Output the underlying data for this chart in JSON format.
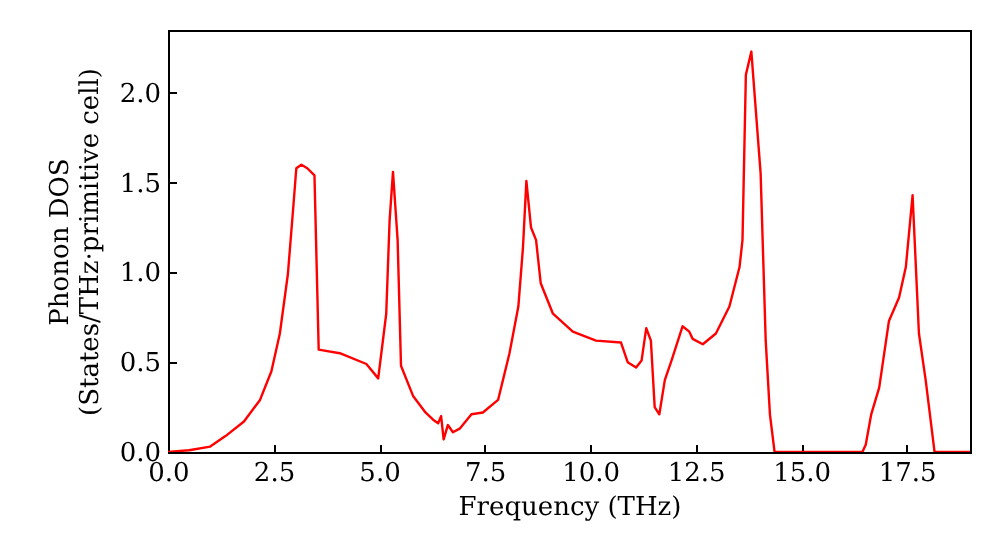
{
  "chart_data": {
    "type": "line",
    "xlabel": "Frequency (THz)",
    "ylabel": "Phonon DOS\n(States/THz·primitive cell)",
    "xlim": [
      0,
      19
    ],
    "ylim": [
      0,
      2.35
    ],
    "xticks": [
      {
        "value": 0,
        "label": "0.0"
      },
      {
        "value": 2.5,
        "label": "2.5"
      },
      {
        "value": 5,
        "label": "5.0"
      },
      {
        "value": 7.5,
        "label": "7.5"
      },
      {
        "value": 10,
        "label": "10.0"
      },
      {
        "value": 12.5,
        "label": "12.5"
      },
      {
        "value": 15,
        "label": "15.0"
      },
      {
        "value": 17.5,
        "label": "17.5"
      }
    ],
    "yticks": [
      {
        "value": 0,
        "label": "0.0"
      },
      {
        "value": 0.5,
        "label": "0.5"
      },
      {
        "value": 1,
        "label": "1.0"
      },
      {
        "value": 1.5,
        "label": "1.5"
      },
      {
        "value": 2,
        "label": "2.0"
      }
    ],
    "grid": false,
    "series": [
      {
        "color": "#ff0000",
        "x": [
          0,
          0.5,
          1.0,
          1.37,
          1.8,
          2.18,
          2.45,
          2.65,
          2.84,
          2.97,
          3.04,
          3.16,
          3.3,
          3.47,
          3.57,
          4.07,
          4.7,
          4.98,
          5.17,
          5.25,
          5.33,
          5.44,
          5.52,
          5.81,
          6.1,
          6.28,
          6.4,
          6.47,
          6.53,
          6.63,
          6.75,
          6.91,
          7.19,
          7.46,
          7.82,
          8.09,
          8.3,
          8.41,
          8.49,
          8.6,
          8.72,
          8.83,
          9.12,
          9.59,
          10.14,
          10.73,
          10.89,
          11.09,
          11.22,
          11.33,
          11.44,
          11.53,
          11.64,
          11.77,
          11.93,
          12.19,
          12.35,
          12.43,
          12.67,
          12.98,
          13.3,
          13.54,
          13.61,
          13.69,
          13.82,
          14.04,
          14.16,
          14.26,
          14.37,
          16.45,
          16.53,
          16.66,
          16.85,
          17.08,
          17.32,
          17.48,
          17.64,
          17.79,
          17.95,
          18.16,
          19
        ],
        "values": [
          0,
          0.01,
          0.03,
          0.09,
          0.17,
          0.29,
          0.45,
          0.66,
          0.99,
          1.37,
          1.58,
          1.6,
          1.58,
          1.54,
          0.57,
          0.55,
          0.49,
          0.41,
          0.77,
          1.29,
          1.56,
          1.18,
          0.48,
          0.31,
          0.22,
          0.18,
          0.16,
          0.2,
          0.07,
          0.15,
          0.11,
          0.13,
          0.21,
          0.22,
          0.29,
          0.55,
          0.81,
          1.14,
          1.51,
          1.25,
          1.18,
          0.94,
          0.77,
          0.67,
          0.62,
          0.61,
          0.5,
          0.47,
          0.51,
          0.69,
          0.62,
          0.25,
          0.21,
          0.4,
          0.51,
          0.7,
          0.67,
          0.63,
          0.6,
          0.66,
          0.81,
          1.03,
          1.18,
          2.1,
          2.23,
          1.55,
          0.62,
          0.21,
          0,
          0,
          0.04,
          0.21,
          0.36,
          0.73,
          0.86,
          1.03,
          1.43,
          0.66,
          0.4,
          0,
          0
        ]
      }
    ]
  }
}
